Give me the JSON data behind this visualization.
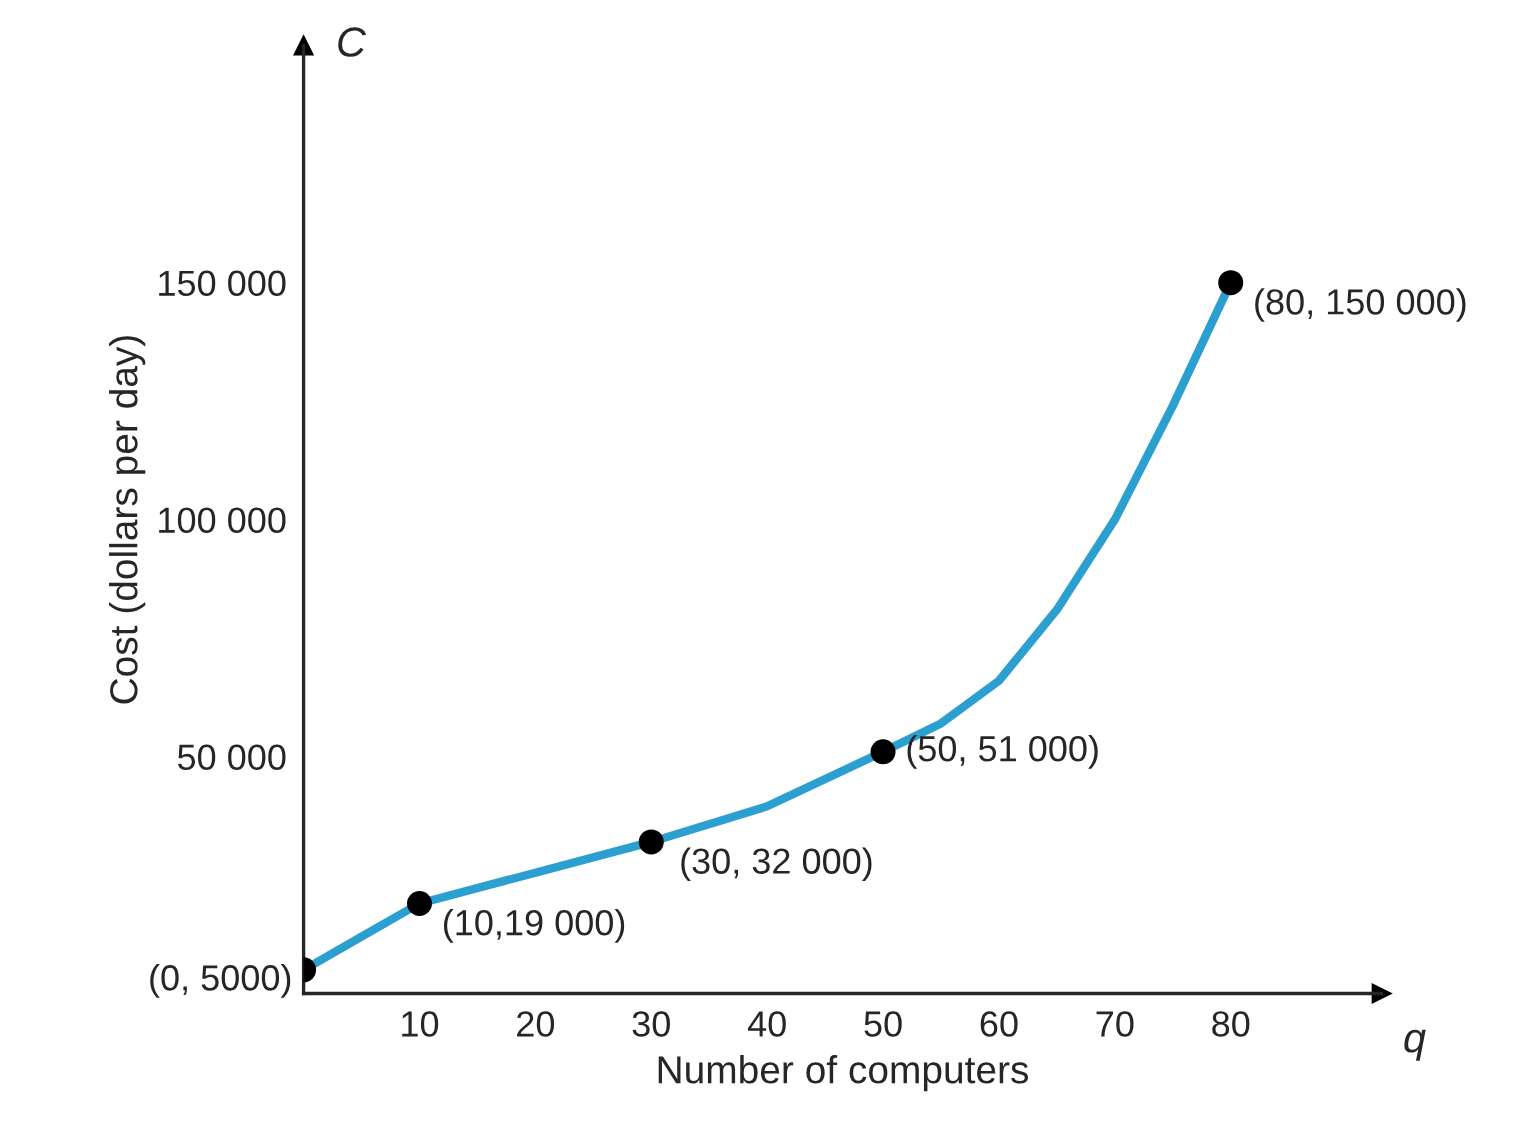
{
  "chart_data": {
    "type": "line",
    "xlabel": "Number of computers",
    "ylabel": "Cost (dollars per day)",
    "x": [
      0,
      10,
      30,
      50,
      80
    ],
    "series": [
      {
        "color": "#2a9fd0",
        "x": [
          0,
          5,
          10,
          20,
          30,
          40,
          50,
          55,
          60,
          65,
          70,
          75,
          80
        ],
        "values": [
          5000,
          12000,
          19000,
          25500,
          32000,
          39500,
          51000,
          57000,
          66000,
          81000,
          100000,
          124000,
          150000
        ]
      },
      {
        "type": "scatter",
        "color": "#000000",
        "values": [
          5000,
          19000,
          32000,
          51000,
          150000
        ]
      }
    ],
    "line_style": "solid",
    "xlim": [
      0,
      93
    ],
    "ylim": [
      0,
      200000
    ],
    "xticks": [
      10,
      20,
      30,
      40,
      50,
      60,
      70,
      80
    ],
    "yticks": [
      {
        "value": 50000,
        "label": "50 000"
      },
      {
        "value": 100000,
        "label": "100 000"
      },
      {
        "value": 150000,
        "label": "150 000"
      }
    ],
    "annotations": [
      "C",
      "q",
      {
        "text": "(0, 5000)",
        "x": 0,
        "y": 5000
      },
      {
        "text": "(10,19 000)",
        "x": 10,
        "y": 19000
      },
      {
        "text": "(30, 32 000)",
        "x": 30,
        "y": 32000
      },
      {
        "text": "(50, 51 000)",
        "x": 50,
        "y": 51000
      },
      {
        "text": "(80, 150 000)",
        "x": 80,
        "y": 150000
      }
    ],
    "grid": false,
    "legend": false
  }
}
